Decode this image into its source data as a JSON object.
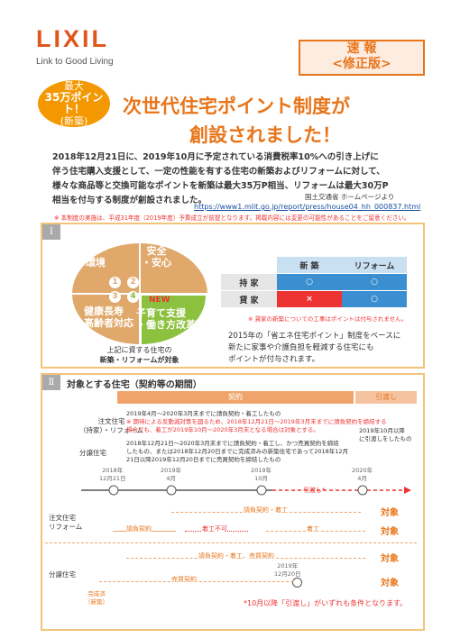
{
  "header": {
    "logo": "LIXIL",
    "tagline": "Link to Good Living",
    "badge_line1": "速 報",
    "badge_line2": "<修正版>"
  },
  "circle": {
    "line1": "最大",
    "line2": "35万ポイント！",
    "line3": "(新築)"
  },
  "title": {
    "line1": "次世代住宅ポイント制度が",
    "line2": "創設されました！"
  },
  "intro": [
    "2018年12月21日に、2019年10月に予定されている消費税率10%への引き上げに",
    "伴う住宅購入支援として、一定の性能を有する住宅の新築およびリフォームに対して、",
    "様々な商品等と交換可能なポイントを新築は最大35万P相当、リフォームは最大30万P",
    "相当を付与する制度が創設されました。"
  ],
  "source": "国土交通省 ホームページより",
  "url": "https://www1.mlit.go.jp/report/press/house04_hh_000837.html",
  "notice": "※ 本制度の実施は、平成31年度（2019年度）予算成立が前提となります。掲載内容には変更の可能性があることをご留意ください。",
  "section1": {
    "numeral": "Ⅰ",
    "pie": {
      "q1": "環境",
      "q2_line1": "安全",
      "q2_line2": "・安心",
      "q3_line1": "健康長寿",
      "q3_line2": "・高齢者対応",
      "q4_new": "NEW",
      "q4_line1": "子育て支援",
      "q4_line2": "・働き方改革",
      "n1": "1",
      "n2": "2",
      "n3": "3",
      "n4": "4"
    },
    "pie_caption_line1": "上記に資する住宅の",
    "pie_caption_line2": "新築・リフォームが対象",
    "table": {
      "col1": "新 築",
      "col2": "リフォーム",
      "row1": "持 家",
      "row1_a": "○",
      "row1_b": "○",
      "row2": "貸 家",
      "row2_a": "×",
      "row2_b": "○"
    },
    "table_note": "※ 貸家の新築についての工事はポイントは付与されません。",
    "desc": [
      "2015年の「省エネ住宅ポイント」制度をベースに",
      "新たに家事や介護負担を軽減する住宅にも",
      "ポイントが付与されます。"
    ]
  },
  "section2": {
    "numeral": "Ⅱ",
    "title": "対象とする住宅（契約等の期間）",
    "phase_contract": "契約",
    "phase_delivery": "引渡し",
    "custom_label_line1": "注文住宅",
    "custom_label_line2": "（持家）・リフォーム",
    "custom_text1": "2019年4月～2020年3月末までに請負契約・着工したもの",
    "custom_text2": "※ 期待による反動減対策を図るため、2018年12月21日～2019年3月末までに請負契約を締結する",
    "custom_text3": "場合でも、着工が2019年10月～2020年3月末となる場合は対象とする。",
    "sale_label": "分譲住宅",
    "sale_text1": "2018年12月21日～2020年3月末までに請負契約・着工し、かつ売買契約を締結",
    "sale_text2": "したもの、または2018年12月20日までに完成済みの新築住宅であって2018年12月",
    "sale_text3": "21日以降2019年12月20日までに売買契約を締結したもの",
    "delivery_text1": "2019年10月以降",
    "delivery_text2": "に引渡しをしたもの",
    "dates": [
      {
        "line1": "2018年",
        "line2": "12月21日"
      },
      {
        "line1": "2019年",
        "line2": "4月"
      },
      {
        "line1": "2019年",
        "line2": "10月"
      },
      {
        "line1": "2020年",
        "line2": "4月"
      }
    ],
    "handover": "引渡し*",
    "row1_label_line1": "注文住宅",
    "row1_label_line2": "リフォーム",
    "contract_start": "請負契約・着工",
    "contract_label": "請負契約",
    "not_started": "着工不可",
    "start": "着工",
    "target": "対象",
    "row2_label": "分譲住宅",
    "sale_contract": "請負契約・着工、売買契約",
    "sale_date_line1": "2019年",
    "sale_date_line2": "12月20日",
    "completed_line1": "完成済",
    "completed_line2": "（新築）",
    "sale_contract2": "売買契約",
    "footnote": "*10月以降「引渡し」がいずれも条件となります。"
  },
  "colors": {
    "orange": "#e8751a",
    "red": "#e33",
    "blue": "#3b8fd0",
    "green": "#8cc13f",
    "pie": "#e0a86b"
  }
}
